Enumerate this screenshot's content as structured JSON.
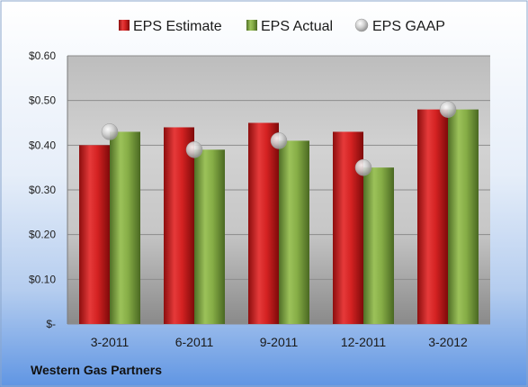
{
  "chart_data": {
    "type": "bar",
    "title": "",
    "xlabel": "",
    "ylabel": "",
    "categories": [
      "3-2011",
      "6-2011",
      "9-2011",
      "12-2011",
      "3-2012"
    ],
    "series": [
      {
        "name": "EPS Estimate",
        "kind": "bar",
        "color": "#cc2020",
        "values": [
          0.4,
          0.44,
          0.45,
          0.43,
          0.48
        ]
      },
      {
        "name": "EPS Actual",
        "kind": "bar",
        "color": "#7aa040",
        "values": [
          0.43,
          0.39,
          0.41,
          0.35,
          0.48
        ]
      },
      {
        "name": "EPS GAAP",
        "kind": "marker",
        "color": "#b8b8b8",
        "values": [
          0.43,
          0.39,
          0.41,
          0.35,
          0.48
        ]
      }
    ],
    "ylim": [
      0,
      0.6
    ],
    "yticks": [
      0,
      0.1,
      0.2,
      0.3,
      0.4,
      0.5,
      0.6
    ],
    "ytick_labels": [
      "$-",
      "$0.10",
      "$0.20",
      "$0.30",
      "$0.40",
      "$0.50",
      "$0.60"
    ],
    "grid": true,
    "legend_position": "top"
  },
  "footer": {
    "company": "Western Gas Partners"
  }
}
